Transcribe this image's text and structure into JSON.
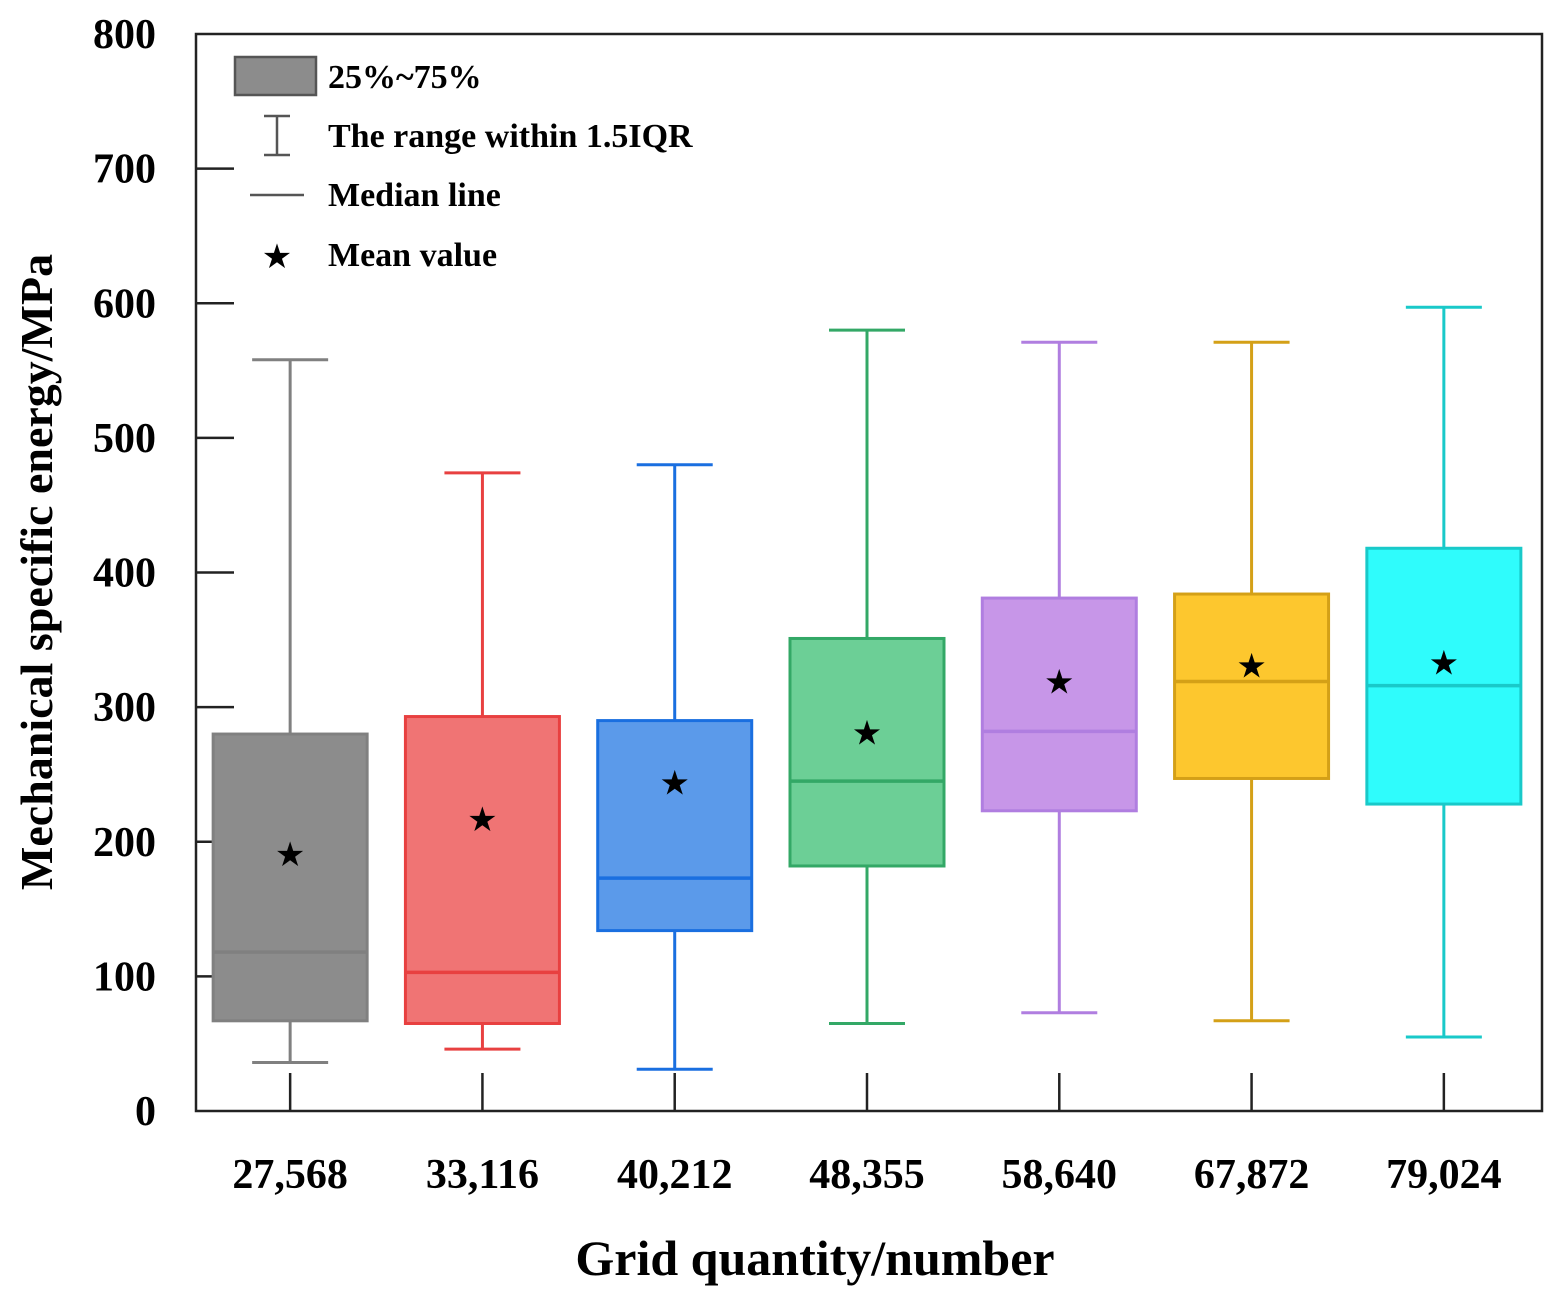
{
  "chart_data": {
    "type": "boxplot",
    "title": "",
    "xlabel": "Grid quantity/number",
    "ylabel": "Mechanical specific energy/MPa",
    "ylim": [
      0,
      800
    ],
    "yticks": [
      0,
      100,
      200,
      300,
      400,
      500,
      600,
      700,
      800
    ],
    "ytick_labels": [
      "0",
      "100",
      "200",
      "300",
      "400",
      "500",
      "600",
      "700",
      "800"
    ],
    "legend": {
      "placement": "top-left",
      "box_label": "25%~75%",
      "whisker_label": "The range within 1.5IQR",
      "median_label": "Median line",
      "mean_label": "Mean value"
    },
    "series": [
      {
        "category": "27,568",
        "color": "#808080",
        "fill": "#8c8c8c",
        "whisker_low": 36,
        "q1": 67,
        "median": 118,
        "q3": 280,
        "whisker_high": 558,
        "mean": 191
      },
      {
        "category": "33,116",
        "color": "#e84040",
        "fill": "#f07474",
        "whisker_low": 46,
        "q1": 65,
        "median": 103,
        "q3": 293,
        "whisker_high": 474,
        "mean": 217
      },
      {
        "category": "40,212",
        "color": "#1a6fe0",
        "fill": "#5b9aea",
        "whisker_low": 31,
        "q1": 134,
        "median": 173,
        "q3": 290,
        "whisker_high": 480,
        "mean": 244
      },
      {
        "category": "48,355",
        "color": "#33a866",
        "fill": "#6ccf96",
        "whisker_low": 65,
        "q1": 182,
        "median": 245,
        "q3": 351,
        "whisker_high": 580,
        "mean": 281
      },
      {
        "category": "58,640",
        "color": "#b07ee0",
        "fill": "#c796e8",
        "whisker_low": 73,
        "q1": 223,
        "median": 282,
        "q3": 381,
        "whisker_high": 571,
        "mean": 319
      },
      {
        "category": "67,872",
        "color": "#d4a017",
        "fill": "#fdc72e",
        "whisker_low": 67,
        "q1": 247,
        "median": 319,
        "q3": 384,
        "whisker_high": 571,
        "mean": 331
      },
      {
        "category": "79,024",
        "color": "#19c9c9",
        "fill": "#2ffcfc",
        "whisker_low": 55,
        "q1": 228,
        "median": 316,
        "q3": 418,
        "whisker_high": 597,
        "mean": 333
      }
    ]
  }
}
